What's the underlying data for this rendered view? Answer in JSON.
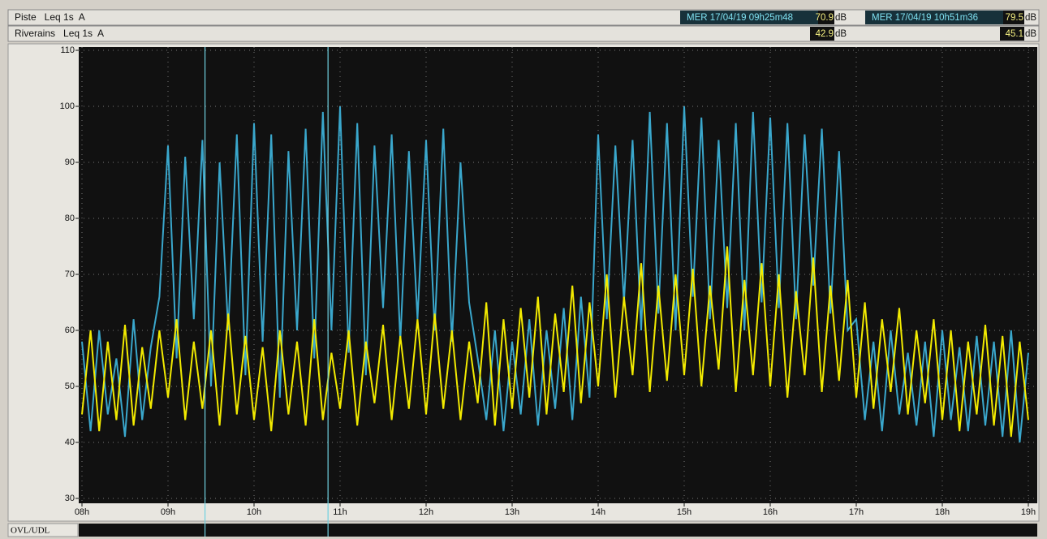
{
  "chart_data": {
    "type": "line",
    "x": [
      8,
      8.1,
      8.2,
      8.3,
      8.4,
      8.5,
      8.6,
      8.7,
      8.8,
      8.9,
      9,
      9.1,
      9.2,
      9.3,
      9.4,
      9.5,
      9.6,
      9.7,
      9.8,
      9.9,
      10,
      10.1,
      10.2,
      10.3,
      10.4,
      10.5,
      10.6,
      10.7,
      10.8,
      10.9,
      11,
      11.1,
      11.2,
      11.3,
      11.4,
      11.5,
      11.6,
      11.7,
      11.8,
      11.9,
      12,
      12.1,
      12.2,
      12.3,
      12.4,
      12.5,
      12.6,
      12.7,
      12.8,
      12.9,
      13,
      13.1,
      13.2,
      13.3,
      13.4,
      13.5,
      13.6,
      13.7,
      13.8,
      13.9,
      14,
      14.1,
      14.2,
      14.3,
      14.4,
      14.5,
      14.6,
      14.7,
      14.8,
      14.9,
      15,
      15.1,
      15.2,
      15.3,
      15.4,
      15.5,
      15.6,
      15.7,
      15.8,
      15.9,
      16,
      16.1,
      16.2,
      16.3,
      16.4,
      16.5,
      16.6,
      16.7,
      16.8,
      16.9,
      17,
      17.1,
      17.2,
      17.3,
      17.4,
      17.5,
      17.6,
      17.7,
      17.8,
      17.9,
      18,
      18.1,
      18.2,
      18.3,
      18.4,
      18.5,
      18.6,
      18.7,
      18.8,
      18.9,
      19
    ],
    "series": [
      {
        "name": "Piste   Leq 1s  A",
        "color": "#3aa7cc",
        "values": [
          58,
          42,
          60,
          45,
          55,
          41,
          62,
          44,
          57,
          66,
          93,
          55,
          91,
          62,
          94,
          50,
          90,
          60,
          95,
          52,
          97,
          58,
          95,
          48,
          92,
          60,
          96,
          55,
          99,
          60,
          100,
          56,
          97,
          52,
          93,
          64,
          95,
          58,
          92,
          62,
          94,
          60,
          96,
          58,
          90,
          65,
          55,
          44,
          60,
          42,
          58,
          45,
          62,
          43,
          60,
          46,
          64,
          44,
          66,
          48,
          95,
          62,
          93,
          65,
          94,
          60,
          99,
          63,
          97,
          60,
          100,
          66,
          98,
          62,
          94,
          64,
          97,
          60,
          99,
          65,
          98,
          64,
          97,
          62,
          95,
          68,
          96,
          63,
          92,
          60,
          62,
          44,
          58,
          42,
          60,
          45,
          56,
          43,
          58,
          41,
          60,
          44,
          57,
          42,
          59,
          43,
          58,
          41,
          60,
          40,
          56
        ]
      },
      {
        "name": "Riverains   Leq 1s  A",
        "color": "#f2ea00",
        "values": [
          45,
          60,
          42,
          58,
          44,
          61,
          43,
          57,
          46,
          60,
          48,
          62,
          44,
          58,
          46,
          60,
          43,
          63,
          45,
          59,
          44,
          57,
          42,
          60,
          45,
          58,
          43,
          62,
          44,
          56,
          46,
          60,
          43,
          58,
          47,
          61,
          44,
          59,
          46,
          62,
          45,
          63,
          46,
          60,
          44,
          58,
          47,
          65,
          43,
          62,
          46,
          64,
          48,
          66,
          45,
          63,
          49,
          68,
          47,
          65,
          50,
          70,
          48,
          66,
          52,
          72,
          49,
          68,
          51,
          70,
          52,
          71,
          50,
          68,
          53,
          75,
          49,
          69,
          52,
          72,
          50,
          70,
          48,
          67,
          52,
          73,
          49,
          68,
          51,
          69,
          48,
          65,
          46,
          62,
          49,
          64,
          45,
          60,
          47,
          62,
          44,
          60,
          42,
          58,
          45,
          61,
          43,
          59,
          41,
          58,
          44
        ]
      }
    ],
    "ylim": [
      30,
      110
    ],
    "yticks": [
      30,
      40,
      50,
      60,
      70,
      80,
      90,
      100,
      110
    ],
    "xlim": [
      8,
      19
    ],
    "xticks": [
      {
        "value": 8,
        "label": "08h"
      },
      {
        "value": 9,
        "label": "09h"
      },
      {
        "value": 10,
        "label": "10h"
      },
      {
        "value": 11,
        "label": "11h"
      },
      {
        "value": 12,
        "label": "12h"
      },
      {
        "value": 13,
        "label": "13h"
      },
      {
        "value": 14,
        "label": "14h"
      },
      {
        "value": 15,
        "label": "15h"
      },
      {
        "value": 16,
        "label": "16h"
      },
      {
        "value": 17,
        "label": "17h"
      },
      {
        "value": 18,
        "label": "18h"
      },
      {
        "value": 19,
        "label": "19h"
      }
    ],
    "grid": true,
    "unit": "dB",
    "cursors": [
      {
        "x": 9.43,
        "label": "MER 17/04/19 09h25m48",
        "piste": 70.9,
        "riverains": 42.9
      },
      {
        "x": 10.86,
        "label": "MER 17/04/19 10h51m36",
        "piste": 79.5,
        "riverains": 45.1
      }
    ],
    "status_label": "OVL/UDL"
  }
}
